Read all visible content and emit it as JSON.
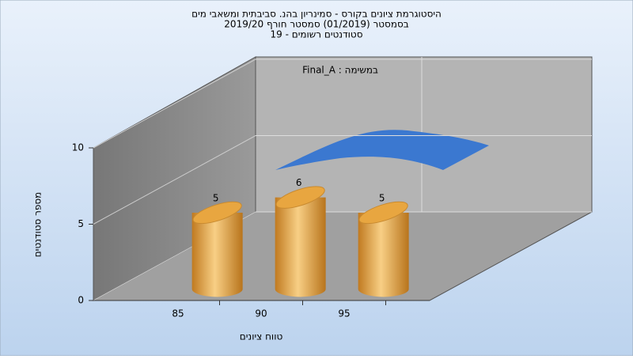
{
  "chart_data": {
    "type": "bar3d",
    "title": [
      "היסטוגרמת ציונים בקורס - סמינריון בהנ. סביבתית ומשאבי מים",
      "בסמסטר  (01/2019)  סמסטר חורף 2019/20",
      "סטודנטים רשומים - 19"
    ],
    "annotation": "Final_A : במשימה",
    "x_label": "טווח ציונים",
    "y_label": "מספר סטודנטים",
    "categories": [
      "85",
      "90",
      "95"
    ],
    "values": [
      5,
      6,
      5
    ],
    "color": "#e8a640",
    "ylim": [
      0,
      10
    ],
    "yticks": [
      0,
      5,
      10
    ]
  }
}
